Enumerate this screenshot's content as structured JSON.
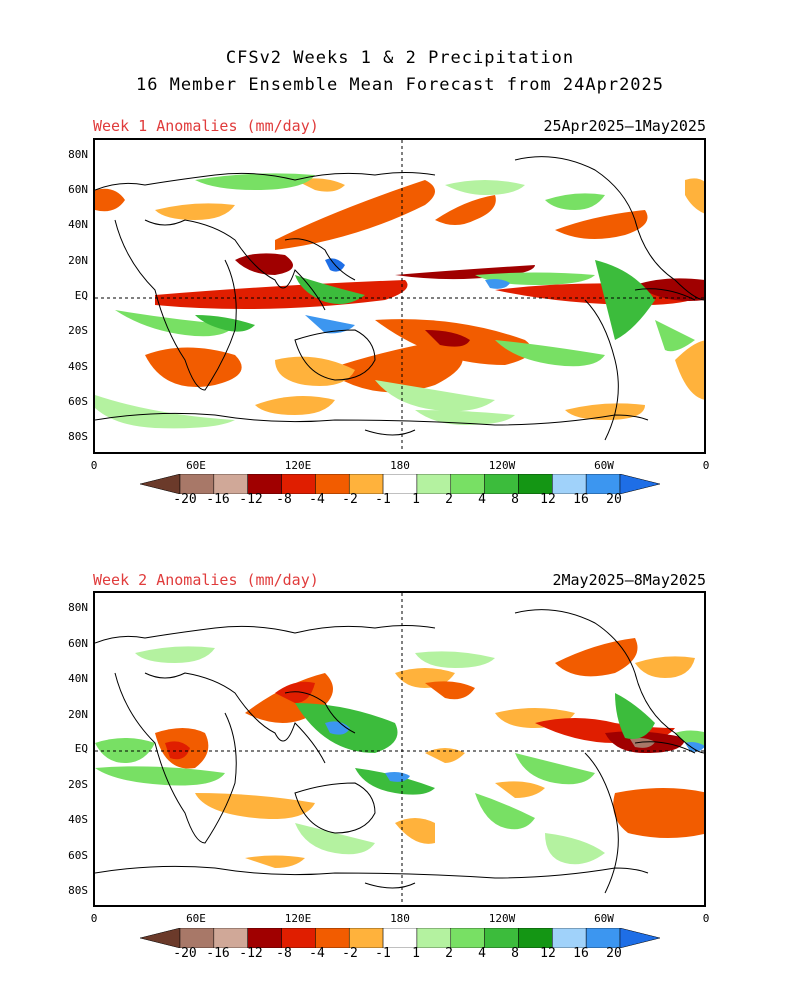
{
  "title_line1": "CFSv2 Weeks 1 & 2 Precipitation",
  "title_line2": "16 Member Ensemble Mean Forecast from 24Apr2025",
  "panels": [
    {
      "label": "Week 1 Anomalies (mm/day)",
      "dates": "25Apr2025–1May2025"
    },
    {
      "label": "Week 2 Anomalies (mm/day)",
      "dates": "2May2025–8May2025"
    }
  ],
  "lat_labels": [
    "80N",
    "60N",
    "40N",
    "20N",
    "EQ",
    "20S",
    "40S",
    "60S",
    "80S"
  ],
  "lon_labels": [
    "0",
    "60E",
    "120E",
    "180",
    "120W",
    "60W",
    "0"
  ],
  "colorbar_labels": [
    "-20",
    "-16",
    "-12",
    "-8",
    "-4",
    "-2",
    "-1",
    "1",
    "2",
    "4",
    "8",
    "12",
    "16",
    "20"
  ],
  "colors": {
    "label_red": "#e03c3c",
    "bins": [
      "#6b3a2a",
      "#a87868",
      "#d0a898",
      "#a00000",
      "#e01e00",
      "#f25c00",
      "#ffb23c",
      "#ffffff",
      "#b4f2a0",
      "#78e064",
      "#3cbc3c",
      "#149614",
      "#a0d2fa",
      "#3c96f0",
      "#1e6ee6"
    ]
  }
}
